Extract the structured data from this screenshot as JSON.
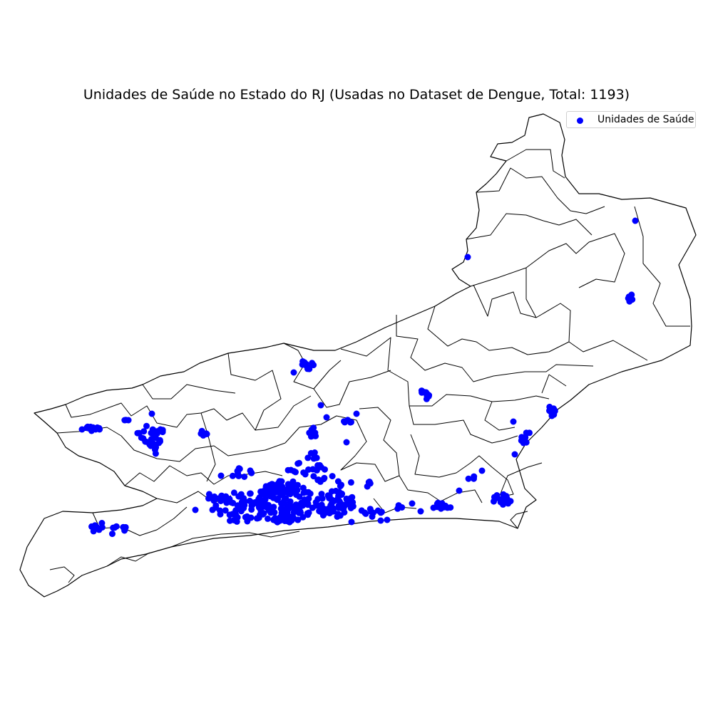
{
  "chart_data": {
    "type": "scatter",
    "title": "Unidades de Saúde no Estado do RJ (Usadas no Dataset de Dengue, Total: 1193)",
    "legend": {
      "entries": [
        "Unidades de Saúde"
      ],
      "placement": "top-right"
    },
    "series": [
      {
        "name": "Unidades de Saúde",
        "color": "#0000ff",
        "marker": "circle",
        "count": 1193
      }
    ],
    "grid": false,
    "axes": false
  },
  "colors": {
    "points": "#0000ff",
    "boundaries": "#000000",
    "background": "#ffffff"
  }
}
